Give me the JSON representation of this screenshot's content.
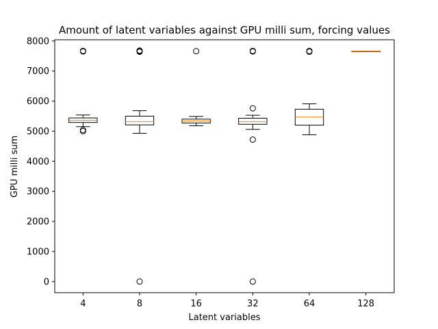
{
  "chart_data": {
    "type": "boxplot",
    "title": "Amount of latent variables against GPU milli sum, forcing values",
    "xlabel": "Latent variables",
    "ylabel": "GPU milli sum",
    "categories": [
      "4",
      "8",
      "16",
      "32",
      "64",
      "128"
    ],
    "y_ticks": [
      0,
      1000,
      2000,
      3000,
      4000,
      5000,
      6000,
      7000,
      8000
    ],
    "y_tick_labels": [
      "0",
      "1000",
      "2000",
      "3000",
      "4000",
      "5000",
      "6000",
      "7000",
      "8000"
    ],
    "ylim": [
      -370,
      8040
    ],
    "grid": false,
    "boxes": [
      {
        "category": "4",
        "whisker_low": 5150,
        "q1": 5290,
        "median": 5360,
        "q3": 5440,
        "whisker_high": 5540,
        "fliers": [
          5000,
          5040,
          7650,
          7670
        ]
      },
      {
        "category": "8",
        "whisker_low": 4930,
        "q1": 5210,
        "median": 5320,
        "q3": 5500,
        "whisker_high": 5680,
        "fliers": [
          0,
          7640,
          7660,
          7680
        ]
      },
      {
        "category": "16",
        "whisker_low": 5180,
        "q1": 5270,
        "median": 5340,
        "q3": 5400,
        "whisker_high": 5490,
        "fliers": [
          7660
        ]
      },
      {
        "category": "32",
        "whisker_low": 5060,
        "q1": 5230,
        "median": 5320,
        "q3": 5430,
        "whisker_high": 5530,
        "fliers": [
          0,
          4720,
          5760,
          7650,
          7670
        ]
      },
      {
        "category": "64",
        "whisker_low": 4880,
        "q1": 5200,
        "median": 5470,
        "q3": 5730,
        "whisker_high": 5910,
        "fliers": [
          7640,
          7670
        ]
      },
      {
        "category": "128",
        "whisker_low": 7660,
        "q1": 7660,
        "median": 7660,
        "q3": 7660,
        "whisker_high": 7660,
        "fliers": []
      }
    ],
    "colors": {
      "box": "#000000",
      "median": "#ff7f0e",
      "flier": "#000000"
    }
  }
}
